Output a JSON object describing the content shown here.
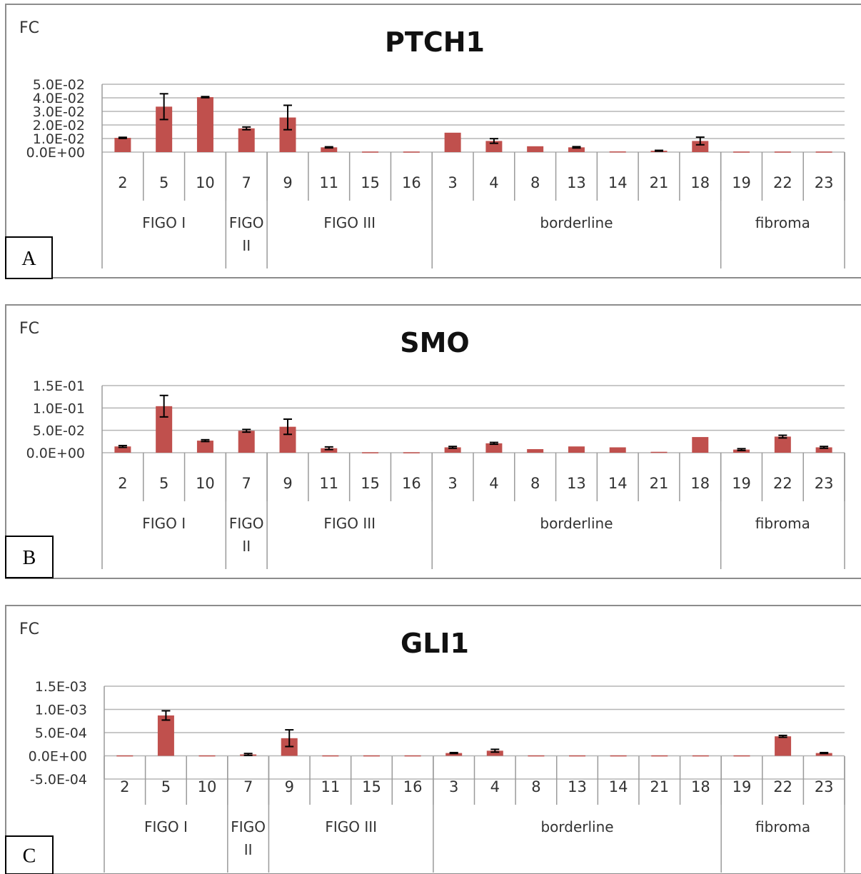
{
  "colors": {
    "bar": "#c0504d",
    "frame": "#8c8c8c",
    "grid": "#b5b5b5"
  },
  "chart_data": [
    {
      "type": "bar",
      "panel": "A",
      "title": "PTCH1",
      "ylabel": "FC",
      "ylim": [
        0,
        0.05
      ],
      "y_ticks": [
        "5.0E-02",
        "4.0E-02",
        "3.0E-02",
        "2.0E-02",
        "1.0E-02",
        "0.0E+00"
      ],
      "y_tick_values": [
        0.05,
        0.04,
        0.03,
        0.02,
        0.01,
        0
      ],
      "categories": [
        "2",
        "5",
        "10",
        "7",
        "9",
        "11",
        "15",
        "16",
        "3",
        "4",
        "8",
        "13",
        "14",
        "21",
        "18",
        "19",
        "22",
        "23"
      ],
      "groups": [
        {
          "label": "FIGO I",
          "size": 3
        },
        {
          "label": "FIGO II",
          "size": 1
        },
        {
          "label": "FIGO III",
          "size": 4
        },
        {
          "label": "borderline",
          "size": 7
        },
        {
          "label": "fibroma",
          "size": 3
        }
      ],
      "values": [
        0.0105,
        0.0335,
        0.0405,
        0.0175,
        0.0255,
        0.0035,
        0.0004,
        0.0004,
        0.0143,
        0.0082,
        0.0043,
        0.0035,
        0.0005,
        0.001,
        0.0082,
        0.0004,
        0.0004,
        0.0004
      ],
      "errors": [
        0.0004,
        0.0095,
        0.0004,
        0.001,
        0.009,
        0.0004,
        0,
        0,
        0,
        0.0017,
        0,
        0.0005,
        0,
        0.0003,
        0.0028,
        0,
        0,
        0
      ],
      "grid": true
    },
    {
      "type": "bar",
      "panel": "B",
      "title": "SMO",
      "ylabel": "FC",
      "ylim": [
        0,
        0.15
      ],
      "y_ticks": [
        "1.5E-01",
        "1.0E-01",
        "5.0E-02",
        "0.0E+00"
      ],
      "y_tick_values": [
        0.15,
        0.1,
        0.05,
        0
      ],
      "categories": [
        "2",
        "5",
        "10",
        "7",
        "9",
        "11",
        "15",
        "16",
        "3",
        "4",
        "8",
        "13",
        "14",
        "21",
        "18",
        "19",
        "22",
        "23"
      ],
      "groups": [
        {
          "label": "FIGO I",
          "size": 3
        },
        {
          "label": "FIGO II",
          "size": 1
        },
        {
          "label": "FIGO III",
          "size": 4
        },
        {
          "label": "borderline",
          "size": 7
        },
        {
          "label": "fibroma",
          "size": 3
        }
      ],
      "values": [
        0.014,
        0.104,
        0.027,
        0.049,
        0.058,
        0.01,
        0.001,
        0.001,
        0.012,
        0.021,
        0.008,
        0.014,
        0.012,
        0.002,
        0.035,
        0.007,
        0.036,
        0.012
      ],
      "errors": [
        0.002,
        0.024,
        0.002,
        0.003,
        0.017,
        0.003,
        0,
        0,
        0.002,
        0.002,
        0,
        0,
        0,
        0,
        0,
        0.002,
        0.003,
        0.002
      ],
      "grid": true
    },
    {
      "type": "bar",
      "panel": "C",
      "title": "GLI1",
      "ylabel": "FC",
      "ylim": [
        -0.0005,
        0.0015
      ],
      "y_ticks": [
        "1.5E-03",
        "1.0E-03",
        "5.0E-04",
        "0.0E+00",
        "-5.0E-04"
      ],
      "y_tick_values": [
        0.0015,
        0.001,
        0.0005,
        0,
        -0.0005
      ],
      "categories": [
        "2",
        "5",
        "10",
        "7",
        "9",
        "11",
        "15",
        "16",
        "3",
        "4",
        "8",
        "13",
        "14",
        "21",
        "18",
        "19",
        "22",
        "23"
      ],
      "groups": [
        {
          "label": "FIGO I",
          "size": 3
        },
        {
          "label": "FIGO II",
          "size": 1
        },
        {
          "label": "FIGO III",
          "size": 4
        },
        {
          "label": "borderline",
          "size": 7
        },
        {
          "label": "fibroma",
          "size": 3
        }
      ],
      "values": [
        1e-05,
        0.00087,
        1e-05,
        3e-05,
        0.00038,
        1e-05,
        1e-05,
        1e-05,
        6e-05,
        0.00011,
        1e-05,
        1e-05,
        1e-05,
        1e-05,
        1e-05,
        1e-05,
        0.00042,
        6e-05
      ],
      "errors": [
        0,
        0.0001,
        0,
        2e-05,
        0.00018,
        0,
        0,
        0,
        1e-05,
        3e-05,
        0,
        0,
        0,
        0,
        0,
        0,
        2e-05,
        1e-05
      ],
      "grid": true
    }
  ]
}
